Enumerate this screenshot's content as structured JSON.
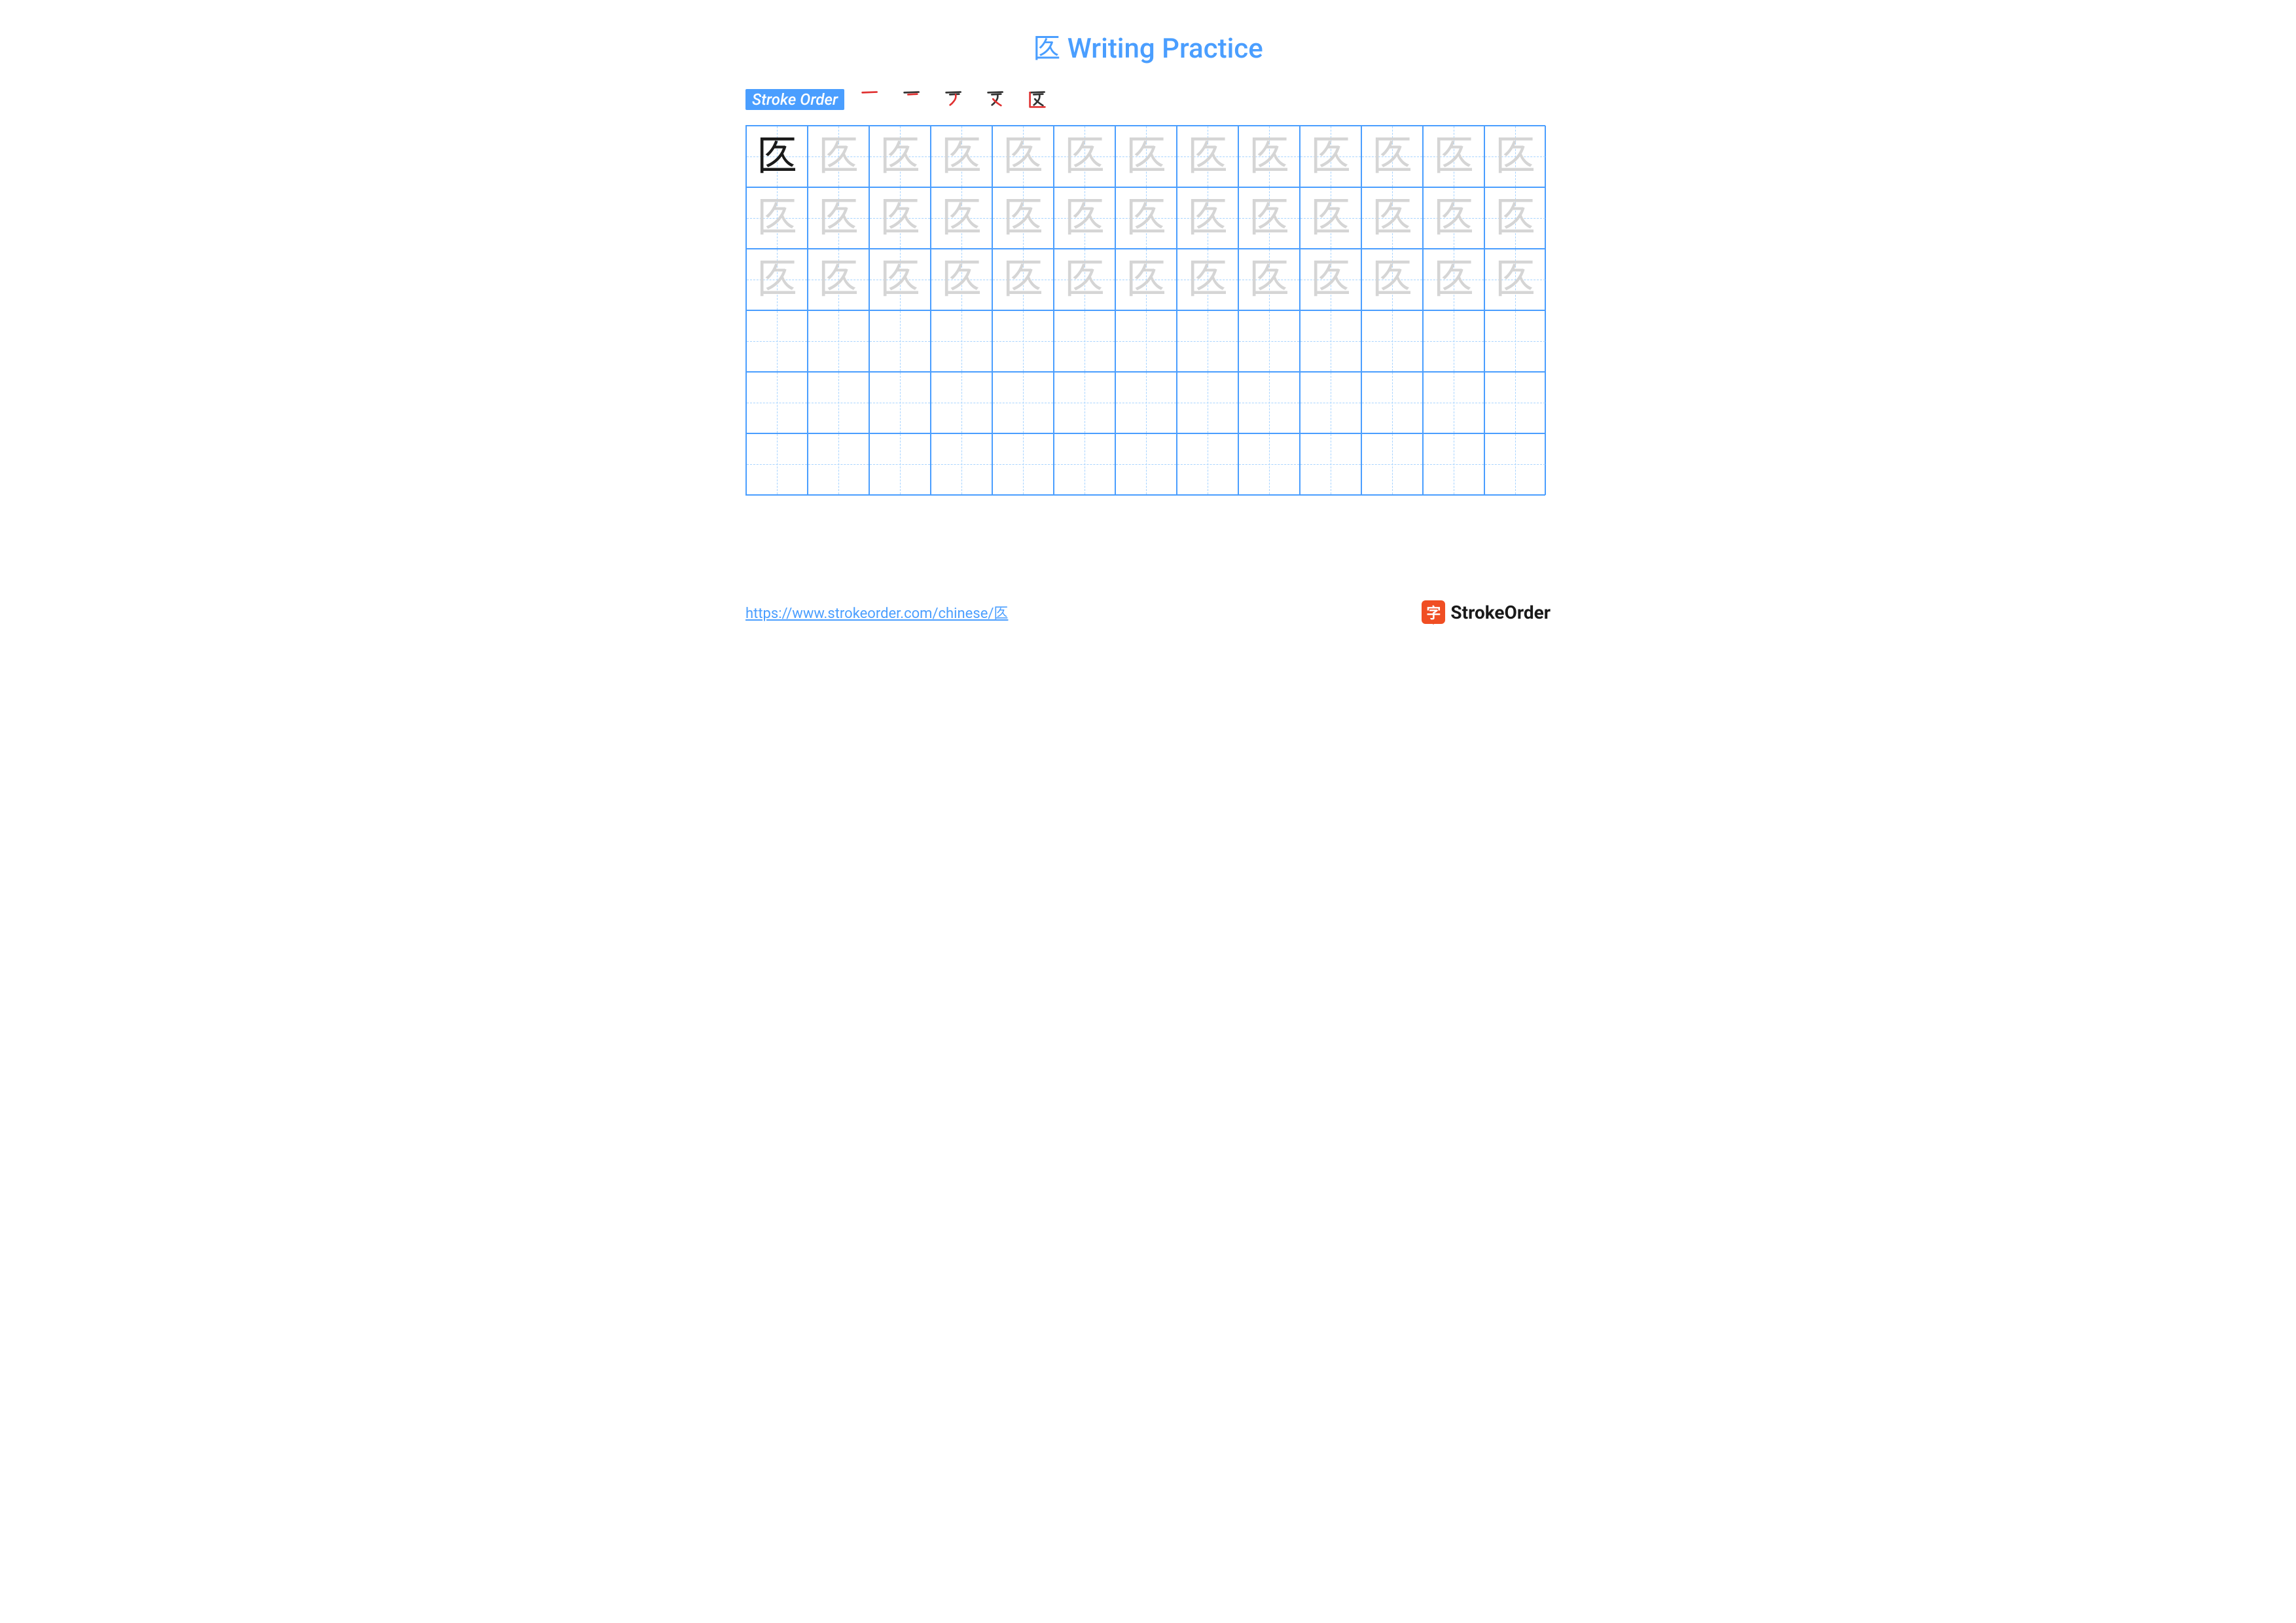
{
  "colors": {
    "accent": "#4a9eff",
    "title": "#4a9eff",
    "badge_bg": "#4a9eff",
    "badge_text": "#ffffff",
    "grid_border": "#4a9eff",
    "guide_line": "#a8d4ff",
    "char_solid": "#1a1a1a",
    "char_faded": "#d5d5d5",
    "stroke_done": "#333333",
    "stroke_current": "#e03030",
    "url": "#4a9eff",
    "logo_bg": "#f04e23",
    "logo_text": "#1a1a1a"
  },
  "title": "匛 Writing Practice",
  "stroke_label": "Stroke Order",
  "character": "匛",
  "stroke_count": 5,
  "grid": {
    "rows": 6,
    "cols": 13,
    "cell_size": 94,
    "traced_rows": 3,
    "solid_cells": 1
  },
  "footer_url": "https://www.strokeorder.com/chinese/匛",
  "logo_glyph": "字",
  "logo_text": "StrokeOrder"
}
